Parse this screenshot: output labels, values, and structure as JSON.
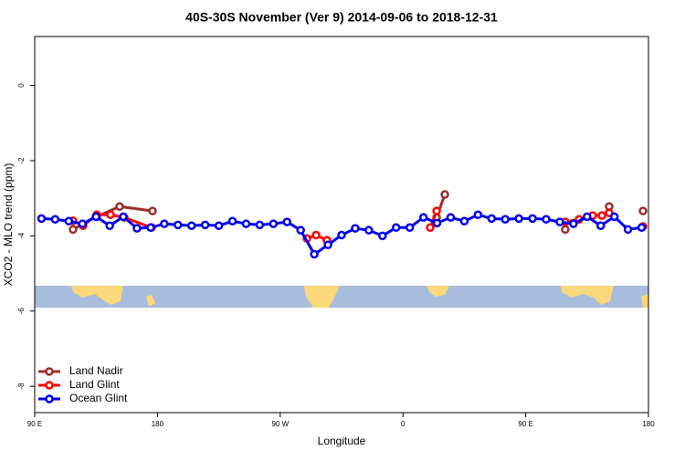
{
  "chart_data": {
    "type": "line",
    "title": "40S-30S November (Ver 9)   2014-09-06 to 2018-12-31",
    "x_label": "Longitude",
    "y_label": "XCO2 - MLO trend (ppm)",
    "xlim": [
      90,
      540
    ],
    "ylim": [
      -8.7,
      1.3
    ],
    "xticks": [
      {
        "value": 90,
        "label": "90 E"
      },
      {
        "value": 180,
        "label": "180"
      },
      {
        "value": 270,
        "label": "90 W"
      },
      {
        "value": 360,
        "label": "0"
      },
      {
        "value": 450,
        "label": "90 E"
      },
      {
        "value": 540,
        "label": "180"
      }
    ],
    "yticks": [
      0,
      -2,
      -4,
      -6,
      -8
    ],
    "legend": "bottom-left",
    "series": [
      {
        "name": "Land Nadir",
        "color": "#99302e",
        "x": [
          118.1,
          135.5,
          152.3,
          176.4,
          null,
          304.3,
          null,
          384.7,
          390.7,
          null,
          479,
          null,
          511.2,
          null,
          536
        ],
        "values": [
          -3.83,
          -3.49,
          -3.22,
          -3.34,
          null,
          -4.12,
          null,
          -3.51,
          -2.9,
          null,
          -3.83,
          null,
          -3.22,
          null,
          -3.34
        ]
      },
      {
        "name": "Land Glint",
        "color": "#ff0000",
        "x": [
          118.1,
          125.5,
          135.5,
          145.6,
          155.6,
          175.7,
          null,
          289.6,
          296.3,
          304.3,
          null,
          380,
          384.7,
          null,
          479,
          489.1,
          499.1,
          505.9,
          511.2,
          null,
          536
        ],
        "values": [
          -3.6,
          -3.73,
          -3.44,
          -3.44,
          -3.51,
          -3.78,
          null,
          -4.07,
          -3.98,
          -4.12,
          null,
          -3.78,
          -3.34,
          null,
          -3.63,
          -3.56,
          -3.46,
          -3.46,
          -3.39,
          null,
          -3.75
        ]
      },
      {
        "name": "Ocean Glint",
        "color": "#0000ee",
        "x": [
          95,
          105,
          115,
          125,
          135,
          145,
          155,
          165,
          175,
          185,
          195,
          205,
          215,
          225,
          235,
          245,
          255,
          265,
          275,
          285,
          295,
          305,
          315,
          325,
          335,
          345,
          355,
          365,
          375,
          385,
          395,
          405,
          415,
          425,
          435,
          445,
          455,
          465,
          475,
          485,
          495,
          505,
          515,
          525,
          535
        ],
        "values": [
          -3.54,
          -3.56,
          -3.61,
          -3.68,
          -3.49,
          -3.73,
          -3.49,
          -3.8,
          -3.78,
          -3.68,
          -3.71,
          -3.73,
          -3.71,
          -3.73,
          -3.61,
          -3.68,
          -3.71,
          -3.68,
          -3.63,
          -3.85,
          -4.49,
          -4.24,
          -3.98,
          -3.8,
          -3.85,
          -4.0,
          -3.78,
          -3.78,
          -3.51,
          -3.66,
          -3.51,
          -3.61,
          -3.44,
          -3.54,
          -3.56,
          -3.54,
          -3.54,
          -3.56,
          -3.63,
          -3.68,
          -3.49,
          -3.73,
          -3.49,
          -3.83,
          -3.78
        ]
      }
    ]
  }
}
